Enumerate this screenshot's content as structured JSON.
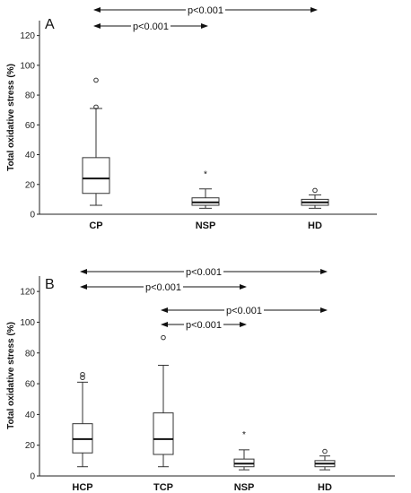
{
  "chart_data": [
    {
      "type": "box",
      "panel": "A",
      "ylabel": "Total oxidative stress (%)",
      "ylim": [
        0,
        130
      ],
      "yticks": [
        0,
        20,
        40,
        60,
        80,
        100,
        120
      ],
      "categories": [
        "CP",
        "NSP",
        "HD"
      ],
      "boxes": [
        {
          "name": "CP",
          "min": 6,
          "q1": 14,
          "median": 24,
          "q3": 38,
          "max": 71,
          "outliers_circle": [
            72,
            90
          ],
          "outliers_star": []
        },
        {
          "name": "NSP",
          "min": 4,
          "q1": 6,
          "median": 8,
          "q3": 11,
          "max": 17,
          "outliers_circle": [],
          "outliers_star": [
            28
          ]
        },
        {
          "name": "HD",
          "min": 4,
          "q1": 6,
          "median": 8,
          "q3": 10,
          "max": 13,
          "outliers_circle": [
            16
          ],
          "outliers_star": []
        }
      ],
      "comparisons": [
        {
          "from": "CP",
          "to": "HD",
          "label": "p<0.001",
          "level": 0
        },
        {
          "from": "CP",
          "to": "NSP",
          "label": "p<0.001",
          "level": 1
        }
      ]
    },
    {
      "type": "box",
      "panel": "B",
      "ylabel": "Total oxidative stress (%)",
      "ylim": [
        0,
        130
      ],
      "yticks": [
        0,
        20,
        40,
        60,
        80,
        100,
        120
      ],
      "categories": [
        "HCP",
        "TCP",
        "NSP",
        "HD"
      ],
      "boxes": [
        {
          "name": "HCP",
          "min": 6,
          "q1": 15,
          "median": 24,
          "q3": 34,
          "max": 61,
          "outliers_circle": [
            64,
            66
          ],
          "outliers_star": []
        },
        {
          "name": "TCP",
          "min": 6,
          "q1": 14,
          "median": 24,
          "q3": 41,
          "max": 72,
          "outliers_circle": [
            90
          ],
          "outliers_star": []
        },
        {
          "name": "NSP",
          "min": 4,
          "q1": 6,
          "median": 8,
          "q3": 11,
          "max": 17,
          "outliers_circle": [],
          "outliers_star": [
            28
          ]
        },
        {
          "name": "HD",
          "min": 4,
          "q1": 6,
          "median": 8,
          "q3": 10,
          "max": 13,
          "outliers_circle": [
            16
          ],
          "outliers_star": []
        }
      ],
      "comparisons": [
        {
          "from": "HCP",
          "to": "HD",
          "label": "p<0.001",
          "level": 0
        },
        {
          "from": "HCP",
          "to": "NSP",
          "label": "p<0.001",
          "level": 1
        },
        {
          "from": "TCP",
          "to": "HD",
          "label": "p<0.001",
          "level": 2
        },
        {
          "from": "TCP",
          "to": "NSP",
          "label": "p<0.001",
          "level": 3
        }
      ]
    }
  ]
}
